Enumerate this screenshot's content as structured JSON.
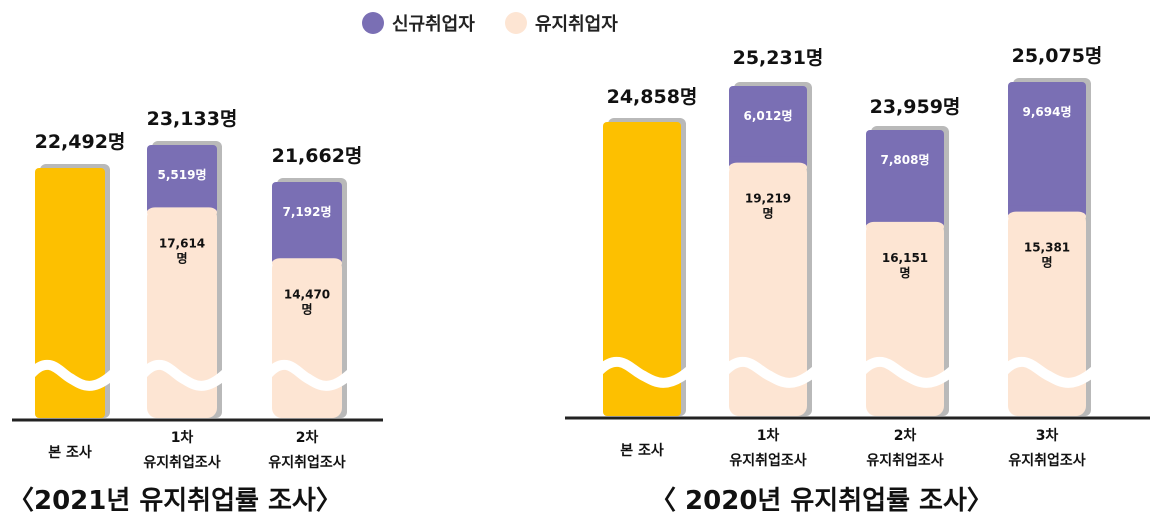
{
  "legend": {
    "new": {
      "label": "신규취업자",
      "color": "#7a6fb4"
    },
    "kept": {
      "label": "유지취업자",
      "color": "#fde5d3"
    }
  },
  "colors": {
    "base": "#fdc000",
    "shadow": "#b9b9b9",
    "axis": "#222222"
  },
  "chart_data": [
    {
      "type": "bar",
      "title": "〈2021년 유지취업률 조사〉",
      "categories": [
        [
          "본 조사"
        ],
        [
          "1차",
          "유지취업조사"
        ],
        [
          "2차",
          "유지취업조사"
        ]
      ],
      "totals": [
        "22,492명",
        "23,133명",
        "21,662명"
      ],
      "series": [
        {
          "name": "신규취업자",
          "values": [
            null,
            5519,
            7192
          ],
          "labels": [
            null,
            [
              "5,519명"
            ],
            [
              "7,192명"
            ]
          ]
        },
        {
          "name": "유지취업자",
          "values": [
            null,
            17614,
            14470
          ],
          "labels": [
            null,
            [
              "17,614",
              "명"
            ],
            [
              "14,470",
              "명"
            ]
          ]
        }
      ],
      "base_values": [
        22492,
        null,
        null
      ],
      "axis_break": true
    },
    {
      "type": "bar",
      "title": "〈 2020년 유지취업률 조사〉",
      "categories": [
        [
          "본 조사"
        ],
        [
          "1차",
          "유지취업조사"
        ],
        [
          "2차",
          "유지취업조사"
        ],
        [
          "3차",
          "유지취업조사"
        ]
      ],
      "totals": [
        "24,858명",
        "25,231명",
        "23,959명",
        "25,075명"
      ],
      "series": [
        {
          "name": "신규취업자",
          "values": [
            null,
            6012,
            7808,
            9694
          ],
          "labels": [
            null,
            [
              "6,012명"
            ],
            [
              "7,808명"
            ],
            [
              "9,694명"
            ]
          ]
        },
        {
          "name": "유지취업자",
          "values": [
            null,
            19219,
            16151,
            15381
          ],
          "labels": [
            null,
            [
              "19,219",
              "명"
            ],
            [
              "16,151",
              "명"
            ],
            [
              "15,381",
              "명"
            ]
          ]
        }
      ],
      "base_values": [
        24858,
        null,
        null,
        null
      ],
      "axis_break": true
    }
  ]
}
